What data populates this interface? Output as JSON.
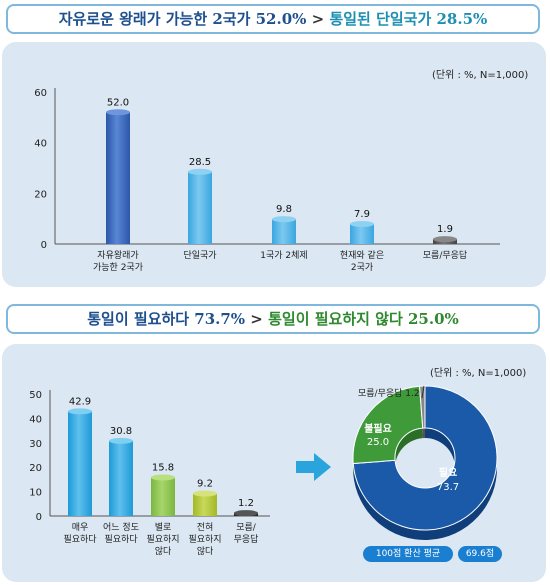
{
  "banners": {
    "top": {
      "part1": "자유로운 왕래가 가능한 2국가 52.0%",
      "separator": ">",
      "part2": "통일된 단일국가 28.5%"
    },
    "bottom": {
      "part1": "통일이 필요하다 73.7%",
      "separator": ">",
      "part2": "통일이 필요하지 않다 25.0%"
    }
  },
  "units": {
    "chart1": "(단위 : %, N=1,000)",
    "chart2": "(단위 : %, N=1,000)"
  },
  "colors": {
    "panel": "#dbe7f2",
    "bar_blue_dark": "#2c57a8",
    "bar_blue_light": "#3aa6df",
    "bar_teal": "#1d9ad6",
    "bar_green": "#7bb640",
    "bar_olive": "#a3b826",
    "bar_gray": "#444444",
    "pie_blue": "#1a5aa8",
    "pie_green": "#3f9a3a",
    "pie_gray": "#888888",
    "arrow": "#2aa4dc"
  },
  "chart_data": [
    {
      "type": "bar",
      "categories": [
        [
          "자유왕래가",
          "가능한 2국가"
        ],
        [
          "단일국가"
        ],
        [
          "1국가 2체제"
        ],
        [
          "현재와 같은",
          "2국가"
        ],
        [
          "모름/무응답"
        ]
      ],
      "values": [
        52.0,
        28.5,
        9.8,
        7.9,
        1.9
      ],
      "labels": [
        "52.0",
        "28.5",
        "9.8",
        "7.9",
        "1.9"
      ],
      "yticks": [
        0,
        20,
        40,
        60
      ],
      "ylim": [
        0,
        60
      ]
    },
    {
      "type": "bar",
      "categories": [
        [
          "매우",
          "필요하다"
        ],
        [
          "어느 정도",
          "필요하다"
        ],
        [
          "별로",
          "필요하지",
          "않다"
        ],
        [
          "전혀",
          "필요하지",
          "않다"
        ],
        [
          "모름/",
          "무응답"
        ]
      ],
      "values": [
        42.9,
        30.8,
        15.8,
        9.2,
        1.2
      ],
      "labels": [
        "42.9",
        "30.8",
        "15.8",
        "9.2",
        "1.2"
      ],
      "yticks": [
        0,
        10,
        20,
        30,
        40,
        50
      ],
      "ylim": [
        0,
        50
      ]
    },
    {
      "type": "pie",
      "style": "donut",
      "slices": [
        {
          "label": "필요",
          "value": 73.7,
          "display": "73.7"
        },
        {
          "label": "불필요",
          "value": 25.0,
          "display": "25.0"
        },
        {
          "label": "모름/무응답",
          "value": 1.2,
          "display": "1.2"
        }
      ]
    }
  ],
  "summary": {
    "label": "100점 환산 평균",
    "value": "69.6점"
  }
}
